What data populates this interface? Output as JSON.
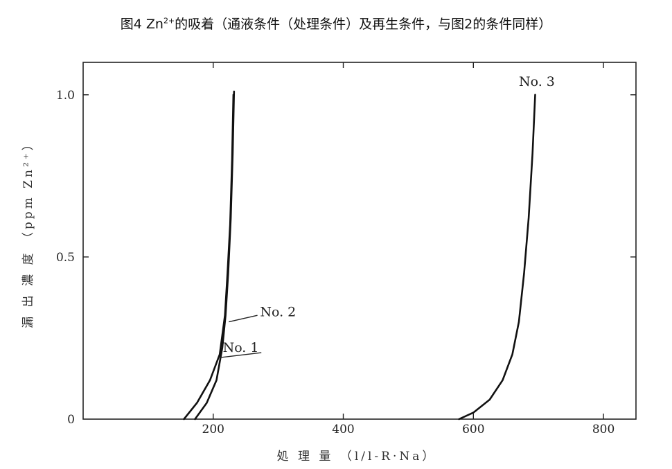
{
  "title": {
    "prefix": "图4 Zn",
    "superscript": "2+",
    "suffix": "的吸着（通液条件（处理条件）及再生条件，与图2的条件同样）"
  },
  "chart_data": {
    "type": "line",
    "xlabel": "処 理 量 （l/l-R·Na）",
    "ylabel": "漏 出 濃 度 （ppm Zn²⁺）",
    "xlim": [
      0,
      850
    ],
    "ylim": [
      0,
      1.1
    ],
    "x_ticks": [
      {
        "value": 200,
        "label": "200"
      },
      {
        "value": 400,
        "label": "400"
      },
      {
        "value": 600,
        "label": "600"
      },
      {
        "value": 800,
        "label": "800"
      }
    ],
    "y_ticks": [
      {
        "value": 0,
        "label": "0"
      },
      {
        "value": 0.5,
        "label": "0.5"
      },
      {
        "value": 1.0,
        "label": "1.0"
      }
    ],
    "grid": false,
    "series": [
      {
        "name": "No. 1",
        "color": "#111111",
        "x": [
          155,
          175,
          195,
          210,
          218,
          222,
          226,
          229,
          231
        ],
        "y": [
          0,
          0.05,
          0.12,
          0.2,
          0.32,
          0.45,
          0.6,
          0.8,
          1.0
        ]
      },
      {
        "name": "No. 2",
        "color": "#111111",
        "x": [
          172,
          190,
          205,
          214,
          219,
          223,
          227,
          230,
          232
        ],
        "y": [
          0,
          0.05,
          0.12,
          0.22,
          0.32,
          0.45,
          0.62,
          0.82,
          1.01
        ]
      },
      {
        "name": "No. 3",
        "color": "#111111",
        "x": [
          578,
          600,
          625,
          645,
          660,
          670,
          678,
          685,
          691,
          695
        ],
        "y": [
          0,
          0.02,
          0.06,
          0.12,
          0.2,
          0.3,
          0.45,
          0.62,
          0.82,
          1.0
        ]
      }
    ]
  }
}
